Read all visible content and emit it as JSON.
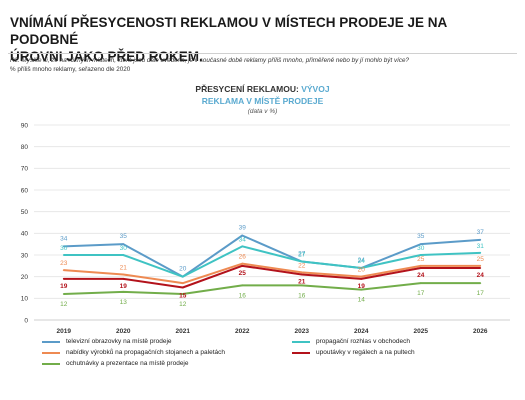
{
  "header": {
    "headline_line1": "VNÍMÁNÍ PŘESYCENOSTI REKLAMOU V MÍSTECH PRODEJE JE NA PODOBNÉ",
    "headline_line2": "ÚROVNI JAKO PŘED ROKEM.",
    "question": "R2. Myslíte si, že na různých místech, která jsou dále uvedena, je v současné době reklamy příliš mnoho, přiměřeně nebo by jí mohlo být více?",
    "note": "% příliš mnoho reklamy, seřazeno dle 2020"
  },
  "chart_data": {
    "type": "line",
    "title_part1": "PŘESYCENÍ REKLAMOU:",
    "title_part2": "VÝVOJ",
    "subtitle": "REKLAMA V MÍSTĚ PRODEJE",
    "unit_note": "(data v %)",
    "categories": [
      "2019",
      "2020",
      "2021",
      "2022",
      "2023",
      "2024",
      "2025",
      "2026"
    ],
    "ylim": [
      0,
      90
    ],
    "yticks": [
      "0",
      "10",
      "20",
      "30",
      "40",
      "50",
      "60",
      "70",
      "80",
      "90"
    ],
    "grid": true,
    "legend_position": "bottom",
    "series": [
      {
        "name": "televizní obrazovky na místě prodeje",
        "color": "#5b9bc8",
        "labels": [
          "34",
          "35",
          "20",
          "39",
          "27",
          "24",
          "35",
          "37"
        ],
        "values": [
          34,
          35,
          20,
          39,
          27,
          24,
          35,
          37
        ]
      },
      {
        "name": "propagační rozhlas v obchodech",
        "color": "#3fc3c3",
        "labels": [
          "30",
          "30",
          "",
          "34",
          "27",
          "24",
          "30",
          "31"
        ],
        "values": [
          30,
          30,
          20,
          34,
          27,
          24,
          30,
          31
        ]
      },
      {
        "name": "nabídky výrobků na propagačních stojanech a paletách",
        "color": "#ee8a52",
        "labels": [
          "23",
          "21",
          "",
          "26",
          "22",
          "20",
          "25",
          "25"
        ],
        "values": [
          23,
          21,
          17,
          26,
          22,
          20,
          25,
          25
        ]
      },
      {
        "name": "upoutávky v regálech a na pultech",
        "color": "#b3121b",
        "labels": [
          "19",
          "19",
          "15",
          "25",
          "21",
          "19",
          "24",
          "24"
        ],
        "values": [
          19,
          19,
          15,
          25,
          21,
          19,
          24,
          24
        ]
      },
      {
        "name": "ochutnávky a prezentace na místě prodeje",
        "color": "#72ad4a",
        "labels": [
          "12",
          "13",
          "12",
          "16",
          "16",
          "14",
          "17",
          "17"
        ],
        "values": [
          12,
          13,
          12,
          16,
          16,
          14,
          17,
          17
        ]
      }
    ]
  }
}
